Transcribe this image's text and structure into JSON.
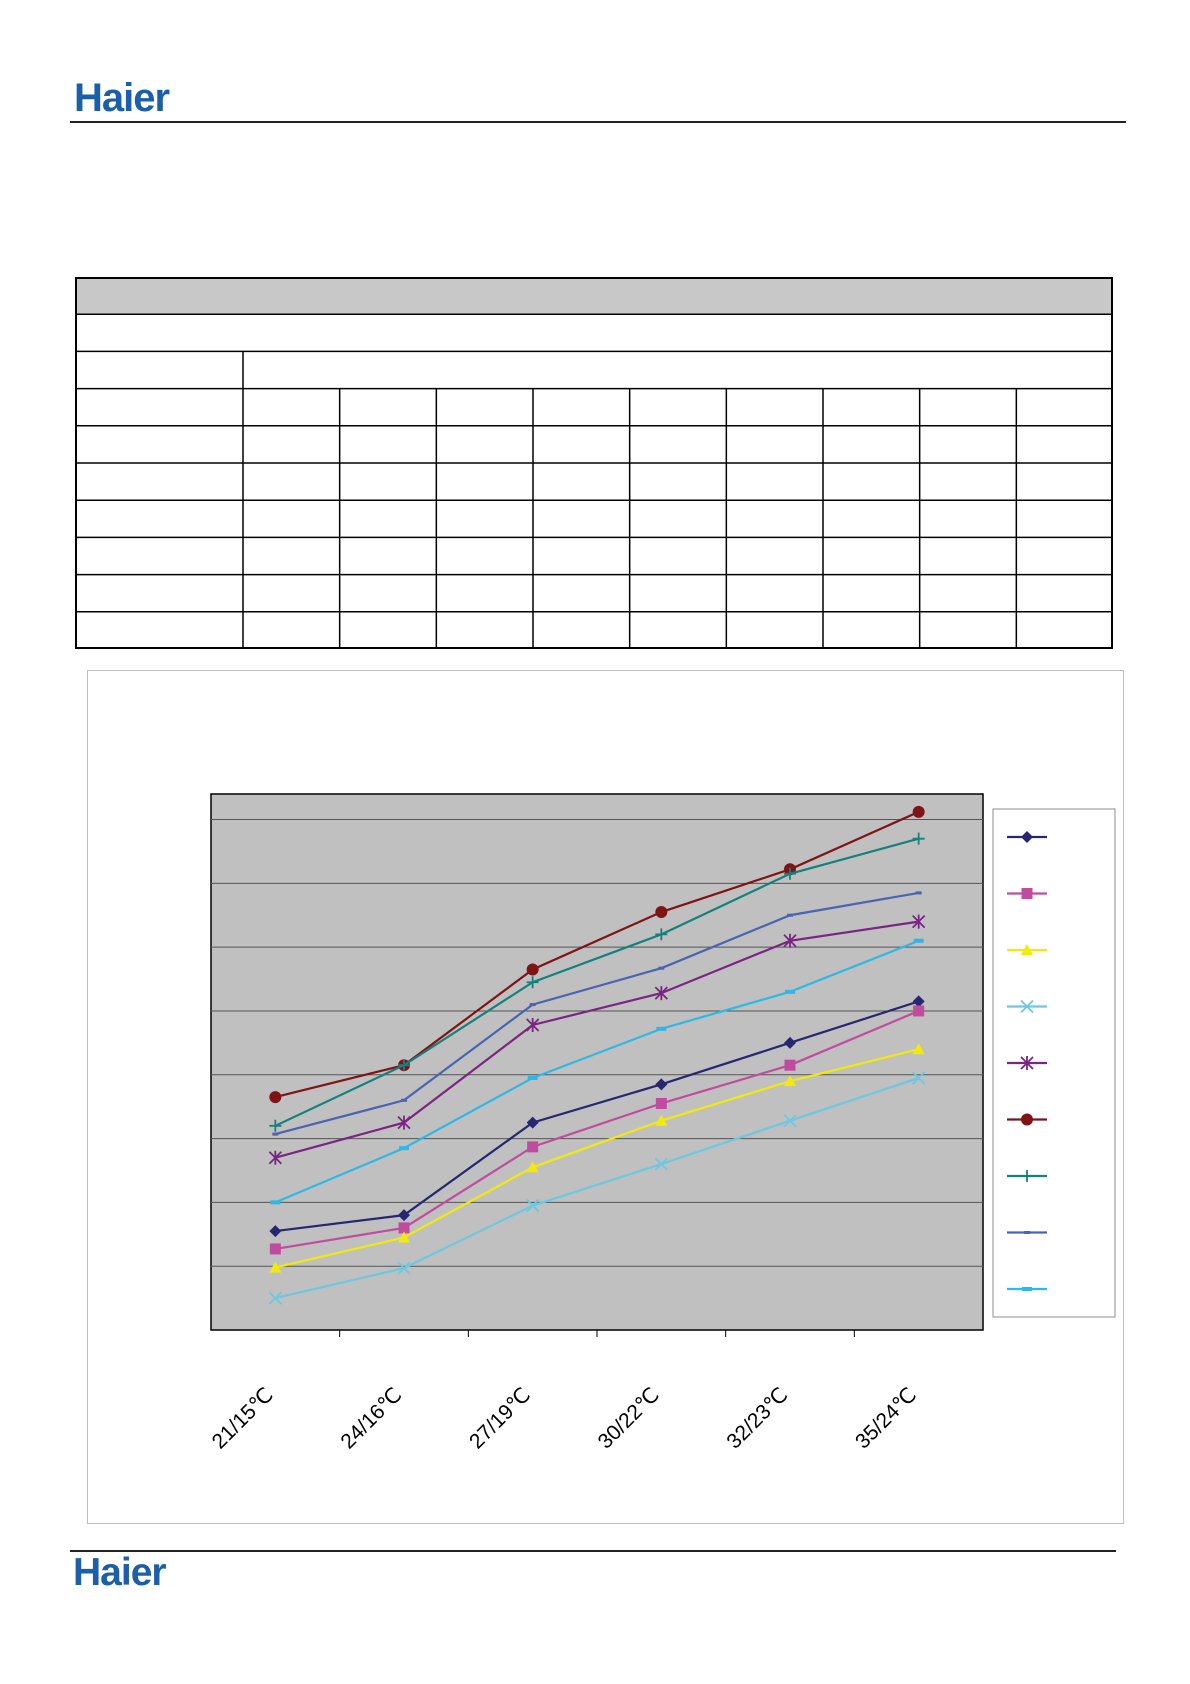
{
  "brand": {
    "name": "Haier",
    "color": "#1b5faa"
  },
  "table": {
    "rows": 10,
    "label_column": true,
    "value_columns": 9,
    "header_fill": "#c8c8c8"
  },
  "chart_data": {
    "type": "line",
    "title": "",
    "xlabel": "",
    "ylabel": "",
    "categories": [
      "21/15℃",
      "24/16℃",
      "27/19℃",
      "30/22℃",
      "32/23℃",
      "35/24℃"
    ],
    "y_gridlines": 8,
    "y_range_units": "unlabeled",
    "plot_background": "#c0c0c0",
    "grid": true,
    "legend_position": "right",
    "series": [
      {
        "color": "#262673",
        "marker": "diamond",
        "values": [
          1.55,
          1.8,
          3.25,
          3.85,
          4.5,
          5.15
        ]
      },
      {
        "color": "#c04ca0",
        "marker": "square",
        "values": [
          1.27,
          1.6,
          2.87,
          3.55,
          4.15,
          5.0
        ]
      },
      {
        "color": "#f2ea0a",
        "marker": "triangle",
        "values": [
          0.98,
          1.45,
          2.55,
          3.28,
          3.9,
          4.4
        ]
      },
      {
        "color": "#6cc8e0",
        "marker": "x",
        "values": [
          0.5,
          0.97,
          1.95,
          2.6,
          3.28,
          3.95
        ]
      },
      {
        "color": "#7b2583",
        "marker": "star",
        "values": [
          2.7,
          3.25,
          4.78,
          5.28,
          6.1,
          6.4
        ]
      },
      {
        "color": "#7f1417",
        "marker": "circle",
        "values": [
          3.65,
          4.15,
          5.65,
          6.55,
          7.22,
          8.12
        ]
      },
      {
        "color": "#15817b",
        "marker": "plus",
        "values": [
          3.2,
          4.15,
          5.45,
          6.2,
          7.15,
          7.7
        ]
      },
      {
        "color": "#4a63b3",
        "marker": "dash",
        "values": [
          3.07,
          3.6,
          5.1,
          5.67,
          6.5,
          6.85
        ]
      },
      {
        "color": "#2eb8e6",
        "marker": "bar",
        "values": [
          2.0,
          2.85,
          3.95,
          4.72,
          5.3,
          6.1
        ]
      }
    ]
  }
}
